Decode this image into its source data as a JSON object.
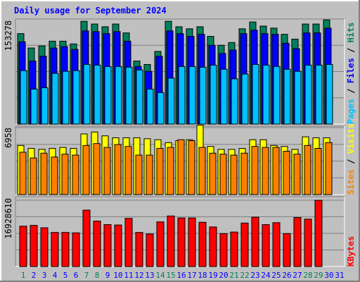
{
  "title": "Daily usage for September 2024",
  "colors": {
    "hits": "#00805c",
    "files": "#0000ff",
    "pages": "#00c0ff",
    "visits": "#ffff00",
    "sites": "#ff8000",
    "kbytes": "#ff0000",
    "weekend_label": "#00805c",
    "weekday_label": "#0000ff",
    "panel_bg": "#c0c0c0",
    "grid": "#808080"
  },
  "chart_data": [
    {
      "type": "bar",
      "panel": "hits-files-pages",
      "ymax_label": "153278",
      "ymax": 153278,
      "categories": [
        "1",
        "2",
        "3",
        "4",
        "5",
        "6",
        "7",
        "8",
        "9",
        "10",
        "11",
        "12",
        "13",
        "14",
        "15",
        "16",
        "17",
        "18",
        "19",
        "20",
        "21",
        "22",
        "23",
        "24",
        "25",
        "26",
        "27",
        "28",
        "29",
        "30",
        "31"
      ],
      "series": [
        {
          "name": "Hits",
          "values": [
            132000,
            111000,
            114000,
            121000,
            121000,
            117000,
            150000,
            146000,
            142000,
            146000,
            133000,
            92000,
            87000,
            106000,
            150000,
            142000,
            139000,
            142000,
            128000,
            115000,
            119000,
            139000,
            149000,
            143000,
            140000,
            131000,
            124000,
            146000,
            146000,
            152000,
            null
          ]
        },
        {
          "name": "Files",
          "values": [
            120000,
            92000,
            99000,
            111000,
            113000,
            109000,
            136000,
            135000,
            132000,
            135000,
            121000,
            84000,
            77000,
            99000,
            136000,
            132000,
            128000,
            131000,
            115000,
            103000,
            108000,
            132000,
            137000,
            132000,
            131000,
            118000,
            110000,
            133000,
            133000,
            140000,
            null
          ]
        },
        {
          "name": "Pages",
          "values": [
            78000,
            51000,
            53000,
            74000,
            77000,
            78000,
            87000,
            86000,
            84000,
            84000,
            83000,
            79000,
            51000,
            46000,
            67000,
            84000,
            84000,
            83000,
            86000,
            80000,
            66000,
            73000,
            87000,
            86000,
            84000,
            80000,
            77000,
            86000,
            86000,
            87000,
            null
          ]
        }
      ]
    },
    {
      "type": "bar",
      "panel": "visits-sites",
      "ymax_label": "6958",
      "ymax": 6958,
      "categories": [
        "1",
        "2",
        "3",
        "4",
        "5",
        "6",
        "7",
        "8",
        "9",
        "10",
        "11",
        "12",
        "13",
        "14",
        "15",
        "16",
        "17",
        "18",
        "19",
        "20",
        "21",
        "22",
        "23",
        "24",
        "25",
        "26",
        "27",
        "28",
        "29",
        "30",
        "31"
      ],
      "series": [
        {
          "name": "Visits",
          "values": [
            5100,
            4800,
            4700,
            4800,
            4900,
            4800,
            6300,
            6500,
            6100,
            5900,
            5900,
            5900,
            5800,
            5700,
            5400,
            5600,
            5700,
            7200,
            5000,
            4700,
            4700,
            4800,
            5700,
            5700,
            5100,
            5000,
            4700,
            6000,
            5900,
            5900,
            null
          ]
        },
        {
          "name": "Sites",
          "values": [
            4400,
            3800,
            4300,
            3900,
            4200,
            4100,
            5100,
            5300,
            4900,
            5200,
            5000,
            4100,
            4100,
            4800,
            4900,
            5700,
            5600,
            4900,
            4300,
            4200,
            4100,
            4300,
            5000,
            4900,
            4900,
            4500,
            4200,
            5100,
            4800,
            5400,
            null
          ]
        }
      ]
    },
    {
      "type": "bar",
      "panel": "kbytes",
      "ymax_label": "16928610",
      "ymax": 16928610,
      "categories": [
        "1",
        "2",
        "3",
        "4",
        "5",
        "6",
        "7",
        "8",
        "9",
        "10",
        "11",
        "12",
        "13",
        "14",
        "15",
        "16",
        "17",
        "18",
        "19",
        "20",
        "21",
        "22",
        "23",
        "24",
        "25",
        "26",
        "27",
        "28",
        "29",
        "30",
        "31"
      ],
      "series": [
        {
          "name": "KBytes",
          "values": [
            10300000,
            10500000,
            9900000,
            8700000,
            8700000,
            8600000,
            14400000,
            11600000,
            10700000,
            10600000,
            12300000,
            8700000,
            8300000,
            11400000,
            12900000,
            12400000,
            12400000,
            11300000,
            10100000,
            8400000,
            8800000,
            11100000,
            12600000,
            10700000,
            11200000,
            8400000,
            12500000,
            12100000,
            16900000,
            null,
            null
          ]
        }
      ]
    }
  ],
  "axis_labels": {
    "panel1": {
      "pages": "Pages",
      "sep1": " / ",
      "files": "Files",
      "sep2": " / ",
      "hits": "Hits"
    },
    "panel2": {
      "sites": "Sites",
      "sep1": " / ",
      "visits": "Visits"
    },
    "panel3": {
      "kbytes": "KBytes"
    }
  },
  "weekend_days": [
    "1",
    "7",
    "8",
    "14",
    "15",
    "21",
    "22",
    "28",
    "29"
  ]
}
